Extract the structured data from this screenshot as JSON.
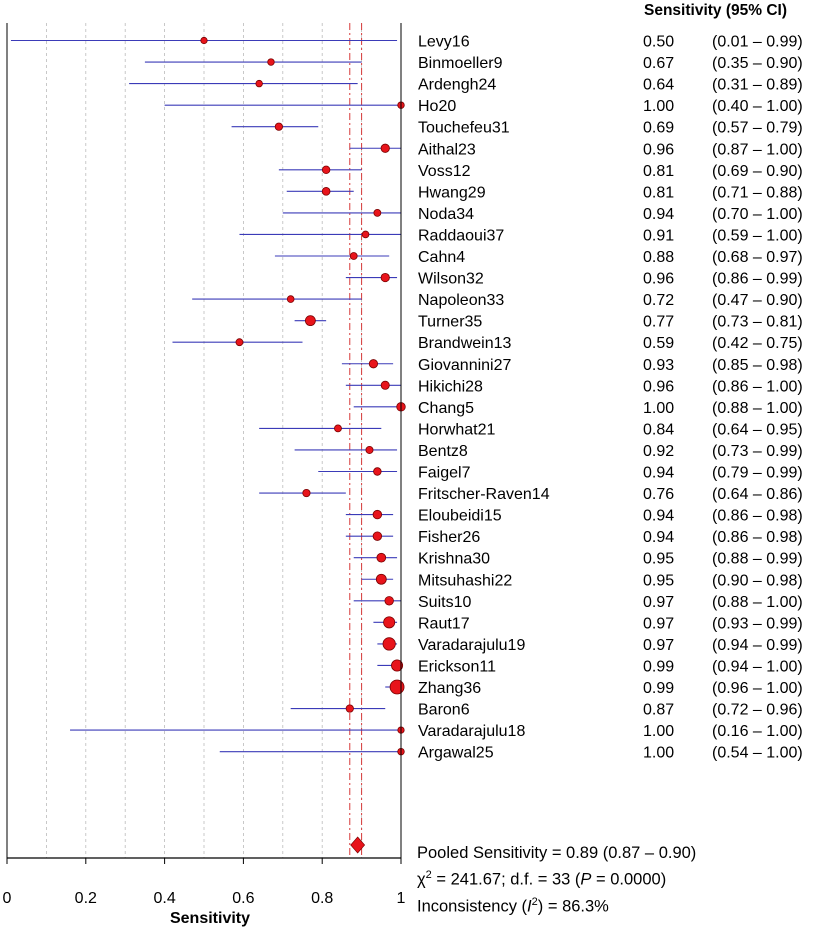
{
  "chart_data": {
    "type": "forest",
    "column_header": "Sensitivity (95% CI)",
    "xlabel": "Sensitivity",
    "xlim": [
      0,
      1
    ],
    "xticks": [
      "0",
      "0.2",
      "0.4",
      "0.6",
      "0.8",
      "1"
    ],
    "pooled": {
      "value": 0.89,
      "lower": 0.87,
      "upper": 0.9
    },
    "studies": [
      {
        "name": "Levy16",
        "value": 0.5,
        "lower": 0.01,
        "upper": 0.99,
        "est_text": "0.50",
        "ci_text": "(0.01 – 0.99)"
      },
      {
        "name": "Binmoeller9",
        "value": 0.67,
        "lower": 0.35,
        "upper": 0.9,
        "est_text": "0.67",
        "ci_text": "(0.35 – 0.90)"
      },
      {
        "name": "Ardengh24",
        "value": 0.64,
        "lower": 0.31,
        "upper": 0.89,
        "est_text": "0.64",
        "ci_text": "(0.31 – 0.89)"
      },
      {
        "name": "Ho20",
        "value": 1.0,
        "lower": 0.4,
        "upper": 1.0,
        "est_text": "1.00",
        "ci_text": "(0.40 – 1.00)"
      },
      {
        "name": "Touchefeu31",
        "value": 0.69,
        "lower": 0.57,
        "upper": 0.79,
        "est_text": "0.69",
        "ci_text": "(0.57 – 0.79)"
      },
      {
        "name": "Aithal23",
        "value": 0.96,
        "lower": 0.87,
        "upper": 1.0,
        "est_text": "0.96",
        "ci_text": "(0.87 – 1.00)"
      },
      {
        "name": "Voss12",
        "value": 0.81,
        "lower": 0.69,
        "upper": 0.9,
        "est_text": "0.81",
        "ci_text": "(0.69 – 0.90)"
      },
      {
        "name": "Hwang29",
        "value": 0.81,
        "lower": 0.71,
        "upper": 0.88,
        "est_text": "0.81",
        "ci_text": "(0.71 – 0.88)"
      },
      {
        "name": "Noda34",
        "value": 0.94,
        "lower": 0.7,
        "upper": 1.0,
        "est_text": "0.94",
        "ci_text": "(0.70 – 1.00)"
      },
      {
        "name": "Raddaoui37",
        "value": 0.91,
        "lower": 0.59,
        "upper": 1.0,
        "est_text": "0.91",
        "ci_text": "(0.59 – 1.00)"
      },
      {
        "name": "Cahn4",
        "value": 0.88,
        "lower": 0.68,
        "upper": 0.97,
        "est_text": "0.88",
        "ci_text": "(0.68 – 0.97)"
      },
      {
        "name": "Wilson32",
        "value": 0.96,
        "lower": 0.86,
        "upper": 0.99,
        "est_text": "0.96",
        "ci_text": "(0.86 – 0.99)"
      },
      {
        "name": "Napoleon33",
        "value": 0.72,
        "lower": 0.47,
        "upper": 0.9,
        "est_text": "0.72",
        "ci_text": "(0.47 – 0.90)"
      },
      {
        "name": "Turner35",
        "value": 0.77,
        "lower": 0.73,
        "upper": 0.81,
        "est_text": "0.77",
        "ci_text": "(0.73 – 0.81)"
      },
      {
        "name": "Brandwein13",
        "value": 0.59,
        "lower": 0.42,
        "upper": 0.75,
        "est_text": "0.59",
        "ci_text": "(0.42 – 0.75)"
      },
      {
        "name": "Giovannini27",
        "value": 0.93,
        "lower": 0.85,
        "upper": 0.98,
        "est_text": "0.93",
        "ci_text": "(0.85 – 0.98)"
      },
      {
        "name": "Hikichi28",
        "value": 0.96,
        "lower": 0.86,
        "upper": 1.0,
        "est_text": "0.96",
        "ci_text": "(0.86 – 1.00)"
      },
      {
        "name": "Chang5",
        "value": 1.0,
        "lower": 0.88,
        "upper": 1.0,
        "est_text": "1.00",
        "ci_text": "(0.88 – 1.00)"
      },
      {
        "name": "Horwhat21",
        "value": 0.84,
        "lower": 0.64,
        "upper": 0.95,
        "est_text": "0.84",
        "ci_text": "(0.64 – 0.95)"
      },
      {
        "name": "Bentz8",
        "value": 0.92,
        "lower": 0.73,
        "upper": 0.99,
        "est_text": "0.92",
        "ci_text": "(0.73 – 0.99)"
      },
      {
        "name": "Faigel7",
        "value": 0.94,
        "lower": 0.79,
        "upper": 0.99,
        "est_text": "0.94",
        "ci_text": "(0.79 – 0.99)"
      },
      {
        "name": "Fritscher-Raven14",
        "value": 0.76,
        "lower": 0.64,
        "upper": 0.86,
        "est_text": "0.76",
        "ci_text": "(0.64 – 0.86)"
      },
      {
        "name": "Eloubeidi15",
        "value": 0.94,
        "lower": 0.86,
        "upper": 0.98,
        "est_text": "0.94",
        "ci_text": "(0.86 – 0.98)"
      },
      {
        "name": "Fisher26",
        "value": 0.94,
        "lower": 0.86,
        "upper": 0.98,
        "est_text": "0.94",
        "ci_text": "(0.86 – 0.98)"
      },
      {
        "name": "Krishna30",
        "value": 0.95,
        "lower": 0.88,
        "upper": 0.99,
        "est_text": "0.95",
        "ci_text": "(0.88 – 0.99)"
      },
      {
        "name": "Mitsuhashi22",
        "value": 0.95,
        "lower": 0.9,
        "upper": 0.98,
        "est_text": "0.95",
        "ci_text": "(0.90 – 0.98)"
      },
      {
        "name": "Suits10",
        "value": 0.97,
        "lower": 0.88,
        "upper": 1.0,
        "est_text": "0.97",
        "ci_text": "(0.88 – 1.00)"
      },
      {
        "name": "Raut17",
        "value": 0.97,
        "lower": 0.93,
        "upper": 0.99,
        "est_text": "0.97",
        "ci_text": "(0.93 – 0.99)"
      },
      {
        "name": "Varadarajulu19",
        "value": 0.97,
        "lower": 0.94,
        "upper": 0.99,
        "est_text": "0.97",
        "ci_text": "(0.94 – 0.99)"
      },
      {
        "name": "Erickson11",
        "value": 0.99,
        "lower": 0.94,
        "upper": 1.0,
        "est_text": "0.99",
        "ci_text": "(0.94 – 1.00)"
      },
      {
        "name": "Zhang36",
        "value": 0.99,
        "lower": 0.96,
        "upper": 1.0,
        "est_text": "0.99",
        "ci_text": "(0.96 – 1.00)"
      },
      {
        "name": "Baron6",
        "value": 0.87,
        "lower": 0.72,
        "upper": 0.96,
        "est_text": "0.87",
        "ci_text": "(0.72 – 0.96)"
      },
      {
        "name": "Varadarajulu18",
        "value": 1.0,
        "lower": 0.16,
        "upper": 1.0,
        "est_text": "1.00",
        "ci_text": "(0.16 – 1.00)"
      },
      {
        "name": "Argawal25",
        "value": 1.0,
        "lower": 0.54,
        "upper": 1.0,
        "est_text": "1.00",
        "ci_text": "(0.54 – 1.00)"
      }
    ],
    "grid": true,
    "colors": {
      "ci_line": "#3b3bb8",
      "point_fill": "#e8141b",
      "point_stroke": "#7a0000",
      "pooled_line": "#d63a3a",
      "grid": "#bbbbbb"
    }
  },
  "summary": {
    "pooled_line": "Pooled Sensitivity = 0.89 (0.87 – 0.90)",
    "chi_prefix": "χ",
    "chi_sup": "2",
    "chi_rest": " = 241.67; d.f. = 33 (",
    "p_label": "P",
    "p_rest": " = 0.0000)",
    "inc_prefix": "Inconsistency (",
    "inc_label": "I",
    "inc_sup": "2",
    "inc_rest": ") = 86.3%"
  }
}
